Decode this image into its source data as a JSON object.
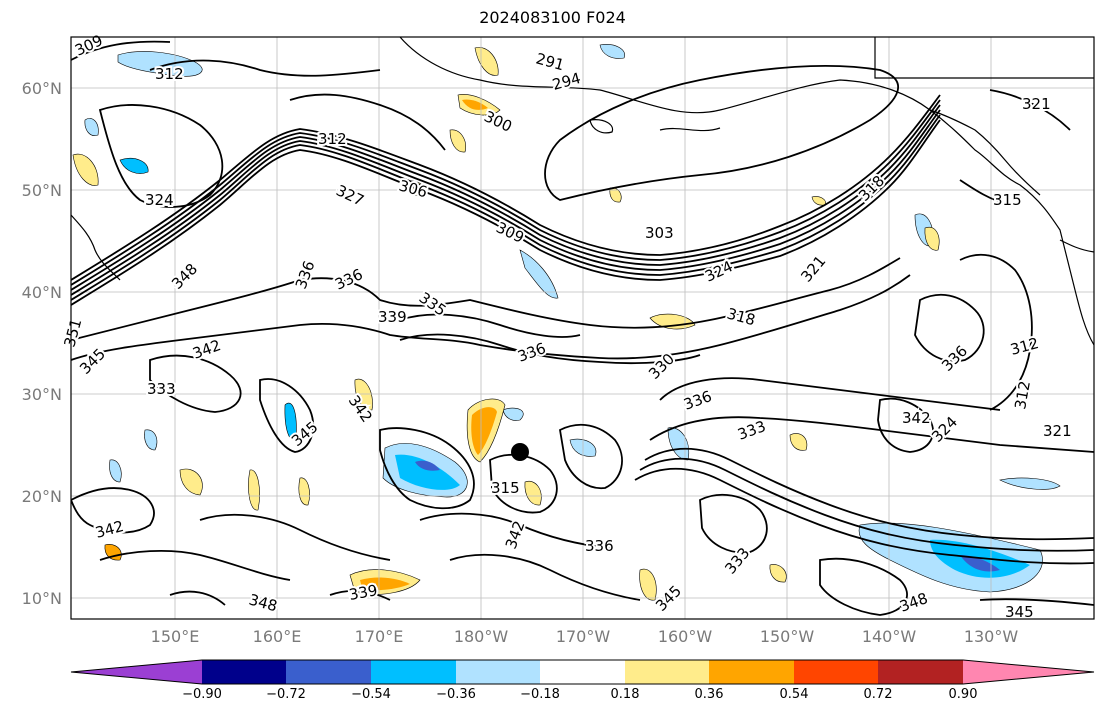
{
  "title": "2024083100 F024",
  "map": {
    "lat_labels": [
      "60°N",
      "50°N",
      "40°N",
      "30°N",
      "20°N",
      "10°N"
    ],
    "lon_labels": [
      "150°E",
      "160°E",
      "170°E",
      "180°W",
      "170°W",
      "160°W",
      "150°W",
      "140°W",
      "130°W"
    ],
    "contour_labels": [
      "309",
      "312",
      "291",
      "294",
      "300",
      "312",
      "306",
      "324",
      "327",
      "309",
      "303",
      "318",
      "324",
      "321",
      "321",
      "315",
      "336",
      "336",
      "335",
      "339",
      "348",
      "342",
      "336",
      "330",
      "333",
      "318",
      "312",
      "345",
      "351",
      "333",
      "336",
      "342",
      "345",
      "336",
      "342",
      "324",
      "321",
      "312",
      "315",
      "342",
      "342",
      "336",
      "348",
      "339",
      "345",
      "333",
      "348",
      "345",
      "333"
    ],
    "marker": "tropical-cyclone-position"
  },
  "colorbar": {
    "ticks": [
      "−0.90",
      "−0.72",
      "−0.54",
      "−0.36",
      "−0.18",
      "0.18",
      "0.36",
      "0.54",
      "0.72",
      "0.90"
    ],
    "colors": [
      "#9b3fd3",
      "#00008b",
      "#3a5fcd",
      "#00bfff",
      "#b0e2ff",
      "#ffffff",
      "#ffec8b",
      "#ffa500",
      "#ff4500",
      "#b22222",
      "#ff86b0"
    ]
  }
}
